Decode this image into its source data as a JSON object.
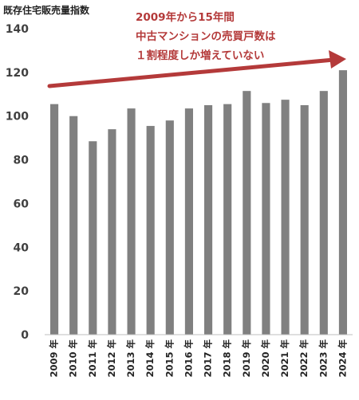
{
  "chart_data": {
    "type": "bar",
    "title": "既存住宅販売量指数",
    "categories": [
      "2009 年",
      "2010 年",
      "2011 年",
      "2012 年",
      "2013 年",
      "2014 年",
      "2015 年",
      "2016 年",
      "2017 年",
      "2018 年",
      "2019 年",
      "2020 年",
      "2021 年",
      "2022 年",
      "2023 年",
      "2024 年"
    ],
    "values": [
      105.5,
      100,
      88.5,
      94,
      103.5,
      95.5,
      98,
      103.5,
      105,
      105.5,
      111.5,
      106,
      107.5,
      105,
      111.5,
      121
    ],
    "ylim": [
      0,
      140
    ],
    "yticks": [
      0,
      20,
      40,
      60,
      80,
      100,
      120,
      140
    ],
    "grid": false,
    "bar_color": "#808080",
    "annotation": {
      "lines": [
        "2009年から15年間",
        "中古マンションの売買戸数は",
        "１割程度しか増えていない"
      ],
      "color": "#b43a3a"
    }
  }
}
